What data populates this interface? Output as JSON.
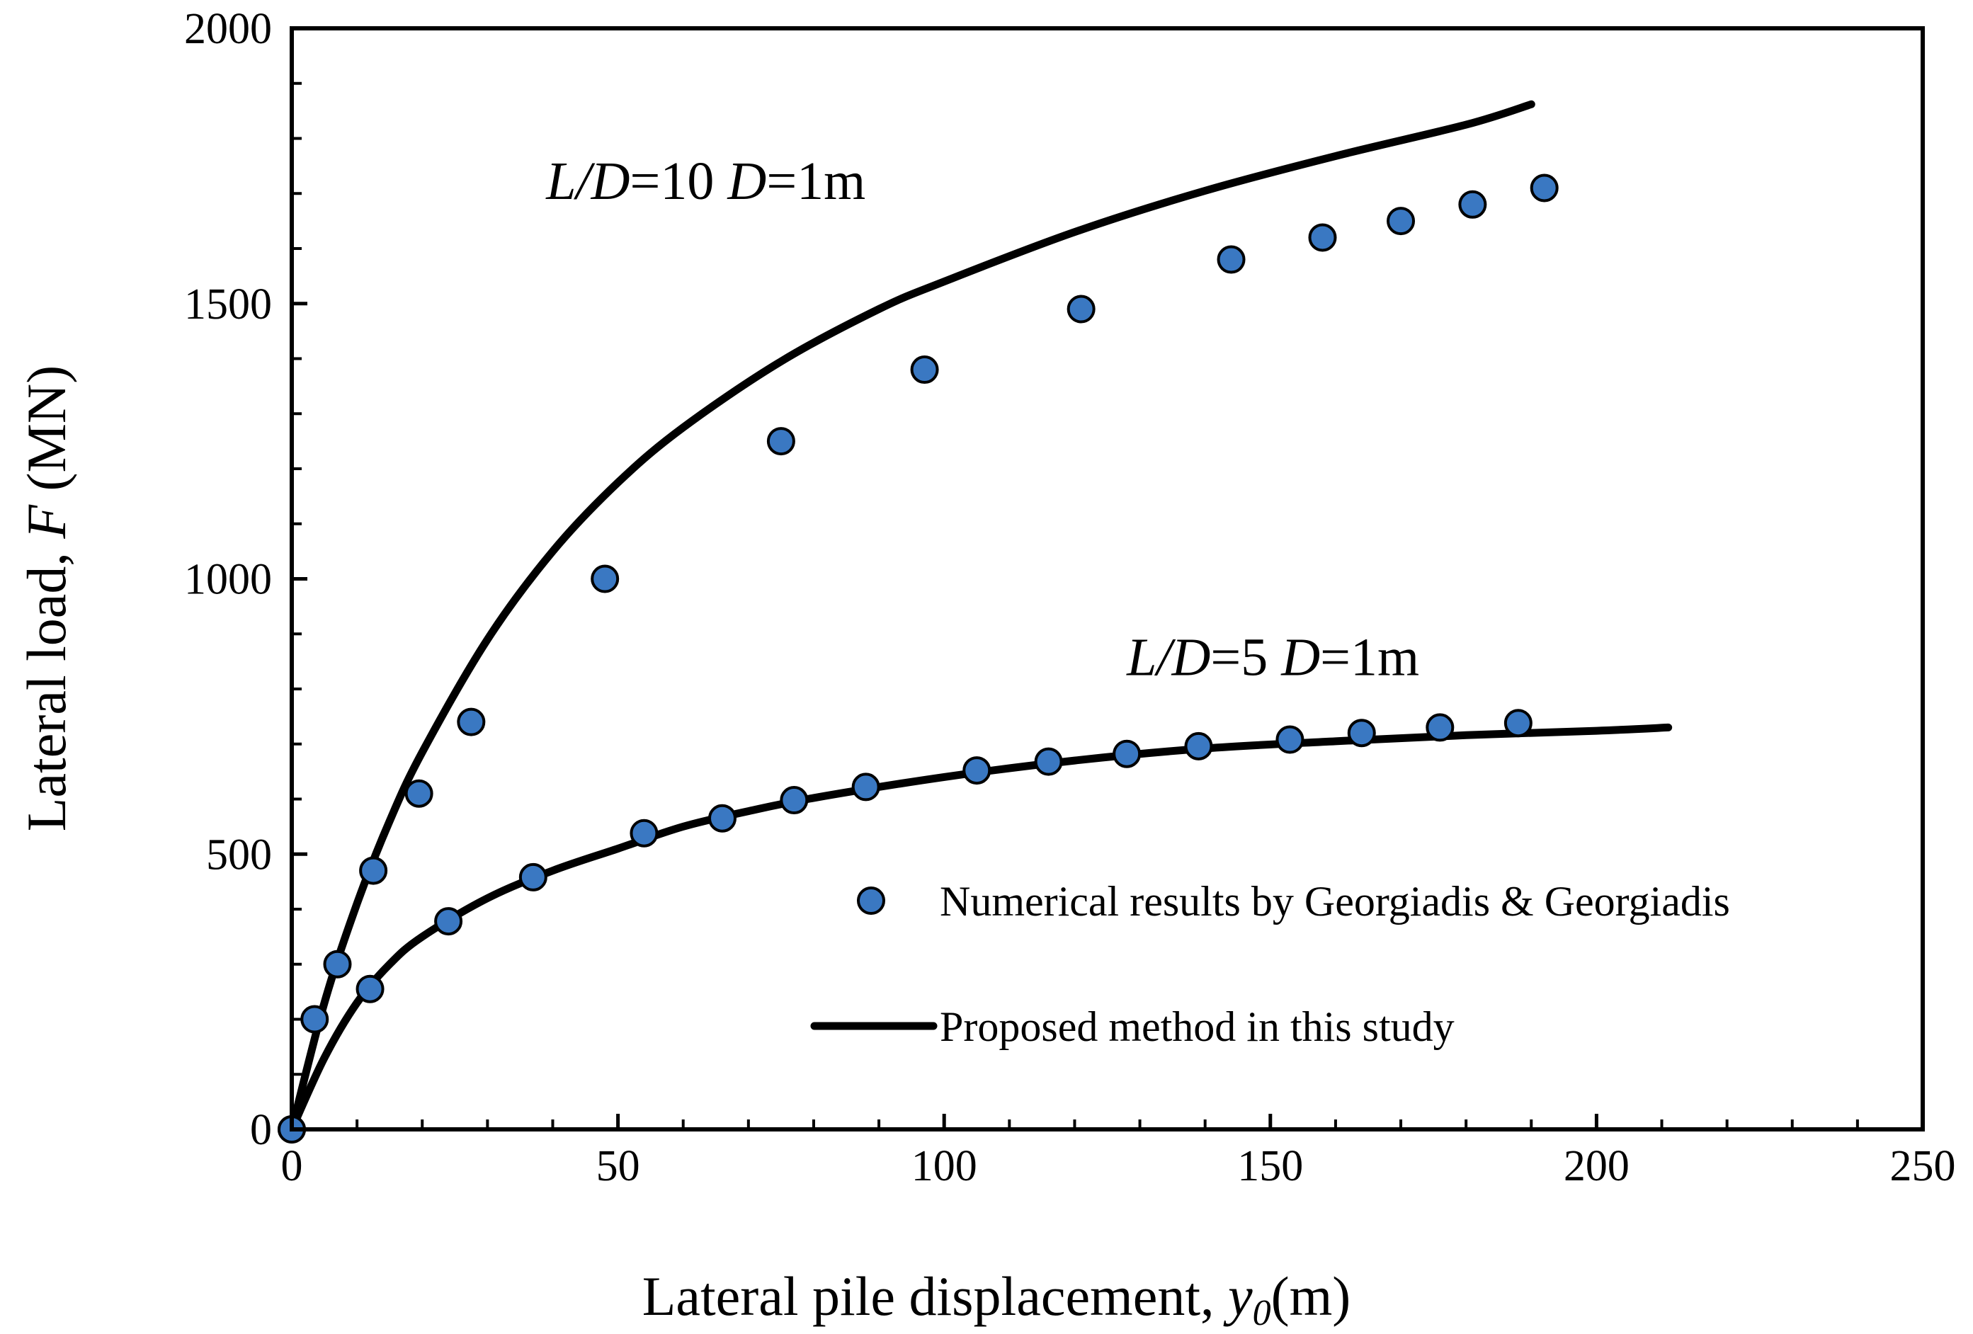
{
  "colors": {
    "marker_fill": "#3a78c2",
    "marker_stroke": "#000000",
    "line": "#000000",
    "axis": "#000000"
  },
  "chart_data": {
    "type": "scatter",
    "title": "",
    "xlabel_prefix": "Lateral pile displacement, ",
    "xlabel_var": "y",
    "xlabel_sub": "0",
    "xlabel_suffix": "(m)",
    "ylabel_prefix": "Lateral load,  ",
    "ylabel_var": "F",
    "ylabel_suffix": " (MN)",
    "xlim": [
      0,
      250
    ],
    "ylim": [
      0,
      2000
    ],
    "xticks": [
      0,
      50,
      100,
      150,
      200,
      250
    ],
    "yticks": [
      0,
      500,
      1000,
      1500,
      2000
    ],
    "xtick_labels": [
      "0",
      "50",
      "100",
      "150",
      "200",
      "250"
    ],
    "ytick_labels": [
      "0",
      "500",
      "1000",
      "1500",
      "2000"
    ],
    "annotations": [
      {
        "id": "ld10",
        "parts": [
          [
            "L/D",
            true
          ],
          [
            "=10 ",
            false
          ],
          [
            "D",
            true
          ],
          [
            "=1m",
            false
          ]
        ],
        "x": 39,
        "y": 1690
      },
      {
        "id": "ld5",
        "parts": [
          [
            "L/D",
            true
          ],
          [
            "=5 ",
            false
          ],
          [
            "D",
            true
          ],
          [
            "=1m",
            false
          ]
        ],
        "x": 128,
        "y": 825
      }
    ],
    "legend": {
      "position": "lower-right",
      "numerical_label": "Numerical results by Georgiadis & Georgiadis",
      "proposed_label": "Proposed method in this study"
    },
    "series": [
      {
        "name": "Numerical results by Georgiadis & Georgiadis (L/D=10)",
        "kind": "markers",
        "points": [
          [
            0,
            0
          ],
          [
            3.5,
            200
          ],
          [
            7,
            300
          ],
          [
            12.5,
            470
          ],
          [
            19.5,
            610
          ],
          [
            27.5,
            740
          ],
          [
            48,
            1000
          ],
          [
            75,
            1250
          ],
          [
            97,
            1380
          ],
          [
            121,
            1490
          ],
          [
            144,
            1580
          ],
          [
            158,
            1620
          ],
          [
            170,
            1650
          ],
          [
            181,
            1680
          ],
          [
            192,
            1710
          ]
        ]
      },
      {
        "name": "Numerical results by Georgiadis & Georgiadis (L/D=5)",
        "kind": "markers",
        "points": [
          [
            0,
            0
          ],
          [
            12,
            255
          ],
          [
            24,
            378
          ],
          [
            37,
            458
          ],
          [
            54,
            538
          ],
          [
            66,
            565
          ],
          [
            77,
            598
          ],
          [
            88,
            622
          ],
          [
            105,
            652
          ],
          [
            116,
            668
          ],
          [
            128,
            682
          ],
          [
            139,
            696
          ],
          [
            153,
            708
          ],
          [
            164,
            720
          ],
          [
            176,
            730
          ],
          [
            188,
            738
          ]
        ]
      },
      {
        "name": "Proposed method in this study (L/D=10)",
        "kind": "line",
        "points": [
          [
            0,
            0
          ],
          [
            5,
            230
          ],
          [
            10,
            410
          ],
          [
            15,
            560
          ],
          [
            20,
            685
          ],
          [
            30,
            890
          ],
          [
            40,
            1050
          ],
          [
            50,
            1175
          ],
          [
            60,
            1275
          ],
          [
            75,
            1395
          ],
          [
            90,
            1490
          ],
          [
            100,
            1540
          ],
          [
            120,
            1630
          ],
          [
            140,
            1705
          ],
          [
            160,
            1768
          ],
          [
            180,
            1825
          ],
          [
            190,
            1862
          ]
        ]
      },
      {
        "name": "Proposed method in this study (L/D=5)",
        "kind": "line",
        "points": [
          [
            0,
            0
          ],
          [
            5,
            130
          ],
          [
            10,
            230
          ],
          [
            15,
            300
          ],
          [
            20,
            350
          ],
          [
            30,
            420
          ],
          [
            40,
            470
          ],
          [
            50,
            510
          ],
          [
            60,
            550
          ],
          [
            70,
            578
          ],
          [
            80,
            602
          ],
          [
            100,
            640
          ],
          [
            120,
            670
          ],
          [
            140,
            692
          ],
          [
            160,
            705
          ],
          [
            180,
            716
          ],
          [
            200,
            724
          ],
          [
            211,
            730
          ]
        ]
      }
    ]
  }
}
